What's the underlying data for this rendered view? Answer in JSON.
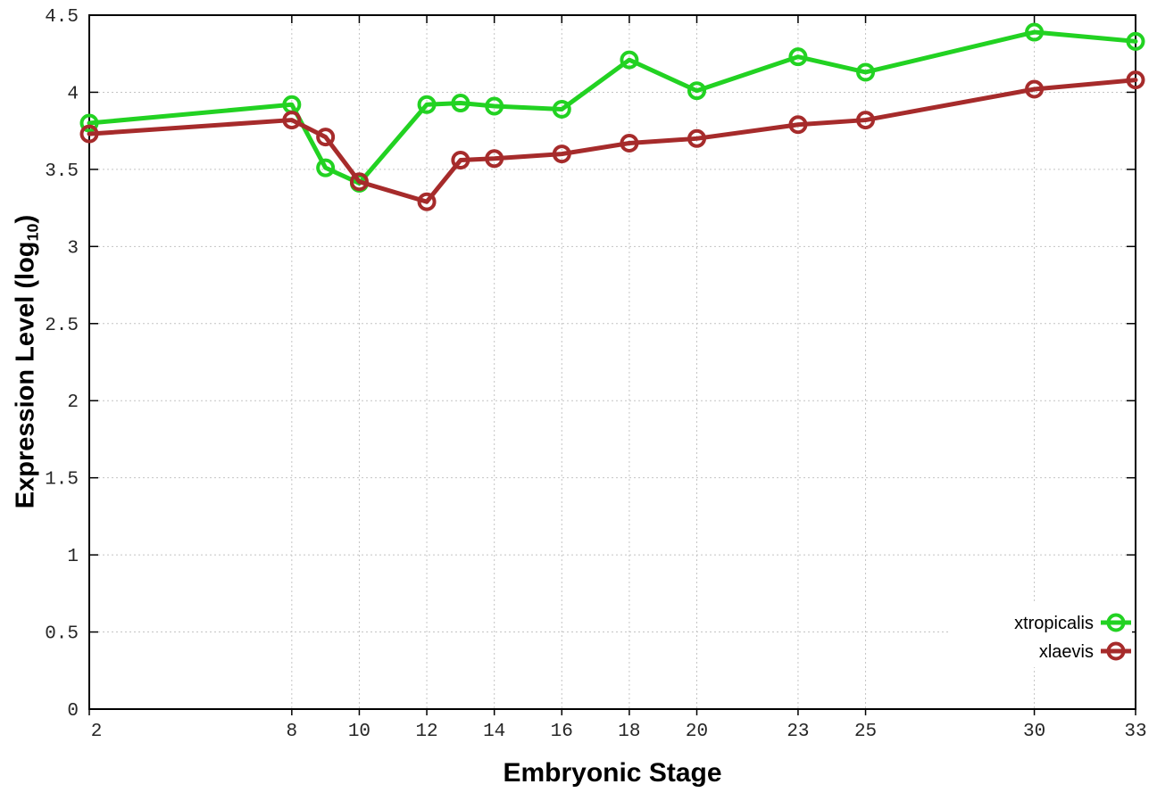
{
  "chart_data": {
    "type": "line",
    "title": "",
    "xlabel": "Embryonic Stage",
    "ylabel": "Expression Level (log10)",
    "ylabel_parts": {
      "prefix": "Expression Level (log",
      "sub": "10",
      "suffix": ")"
    },
    "x_tick_labels": [
      2,
      8,
      10,
      12,
      14,
      16,
      18,
      20,
      23,
      25,
      30,
      33
    ],
    "y_tick_values": [
      0,
      0.5,
      1,
      1.5,
      2,
      2.5,
      3,
      3.5,
      4,
      4.5
    ],
    "xlim": [
      2,
      33
    ],
    "ylim": [
      0,
      4.5
    ],
    "grid": "dotted, both axes",
    "legend": {
      "position": "inside bottom-right",
      "entries": [
        "xtropicalis",
        "xlaevis"
      ]
    },
    "x": [
      2,
      8,
      9,
      10,
      12,
      13,
      14,
      16,
      18,
      20,
      23,
      25,
      30,
      33
    ],
    "series": [
      {
        "name": "xtropicalis",
        "color": "#22d222",
        "marker": "open-circle",
        "values": [
          3.8,
          3.92,
          3.51,
          3.41,
          3.92,
          3.93,
          3.91,
          3.89,
          4.21,
          4.01,
          4.23,
          4.13,
          4.39,
          4.33
        ]
      },
      {
        "name": "xlaevis",
        "color": "#a62b2b",
        "marker": "open-circle",
        "values": [
          3.73,
          3.82,
          3.71,
          3.42,
          3.29,
          3.56,
          3.57,
          3.6,
          3.67,
          3.7,
          3.79,
          3.82,
          4.02,
          4.08
        ]
      }
    ]
  },
  "colors": {
    "background": "#ffffff",
    "grid": "#c4c4c4",
    "axis": "#000000",
    "tick_label": "#262626",
    "legend_text": "#000000"
  }
}
